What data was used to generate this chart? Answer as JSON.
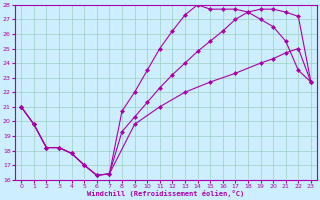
{
  "xlabel": "Windchill (Refroidissement éolien,°C)",
  "bg_color": "#cceeff",
  "grid_color": "#9dcfbf",
  "line_color": "#aa00aa",
  "xlim": [
    -0.5,
    23.5
  ],
  "ylim": [
    16,
    28
  ],
  "xticks": [
    0,
    1,
    2,
    3,
    4,
    5,
    6,
    7,
    8,
    9,
    10,
    11,
    12,
    13,
    14,
    15,
    16,
    17,
    18,
    19,
    20,
    21,
    22,
    23
  ],
  "yticks": [
    16,
    17,
    18,
    19,
    20,
    21,
    22,
    23,
    24,
    25,
    26,
    27,
    28
  ],
  "line1_x": [
    0,
    1,
    2,
    3,
    4,
    5,
    6,
    7,
    8,
    9,
    10,
    11,
    12,
    13,
    14,
    15,
    16,
    17,
    18,
    19,
    20,
    21,
    22,
    23
  ],
  "line1_y": [
    21.0,
    19.8,
    18.2,
    18.2,
    17.8,
    17.0,
    16.3,
    16.4,
    19.3,
    20.3,
    21.3,
    22.3,
    23.2,
    24.0,
    24.8,
    25.5,
    26.2,
    27.0,
    27.5,
    27.7,
    27.7,
    27.5,
    27.2,
    22.7
  ],
  "line2_x": [
    0,
    1,
    2,
    3,
    4,
    5,
    6,
    7,
    8,
    9,
    10,
    11,
    12,
    13,
    14,
    15,
    16,
    17,
    18,
    19,
    20,
    21,
    22,
    23
  ],
  "line2_y": [
    21.0,
    19.8,
    18.2,
    18.2,
    17.8,
    17.0,
    16.3,
    16.4,
    20.7,
    22.0,
    23.5,
    25.0,
    26.2,
    27.3,
    28.0,
    27.7,
    27.7,
    27.7,
    27.5,
    27.0,
    26.5,
    25.5,
    23.5,
    22.7
  ],
  "line3_x": [
    0,
    1,
    2,
    3,
    4,
    5,
    6,
    7,
    9,
    11,
    13,
    15,
    17,
    19,
    20,
    21,
    22,
    23
  ],
  "line3_y": [
    21.0,
    19.8,
    18.2,
    18.2,
    17.8,
    17.0,
    16.3,
    16.4,
    19.8,
    21.0,
    22.0,
    22.7,
    23.3,
    24.0,
    24.3,
    24.7,
    25.0,
    22.7
  ],
  "marker": "D",
  "markersize": 2.5,
  "linewidth": 0.8
}
